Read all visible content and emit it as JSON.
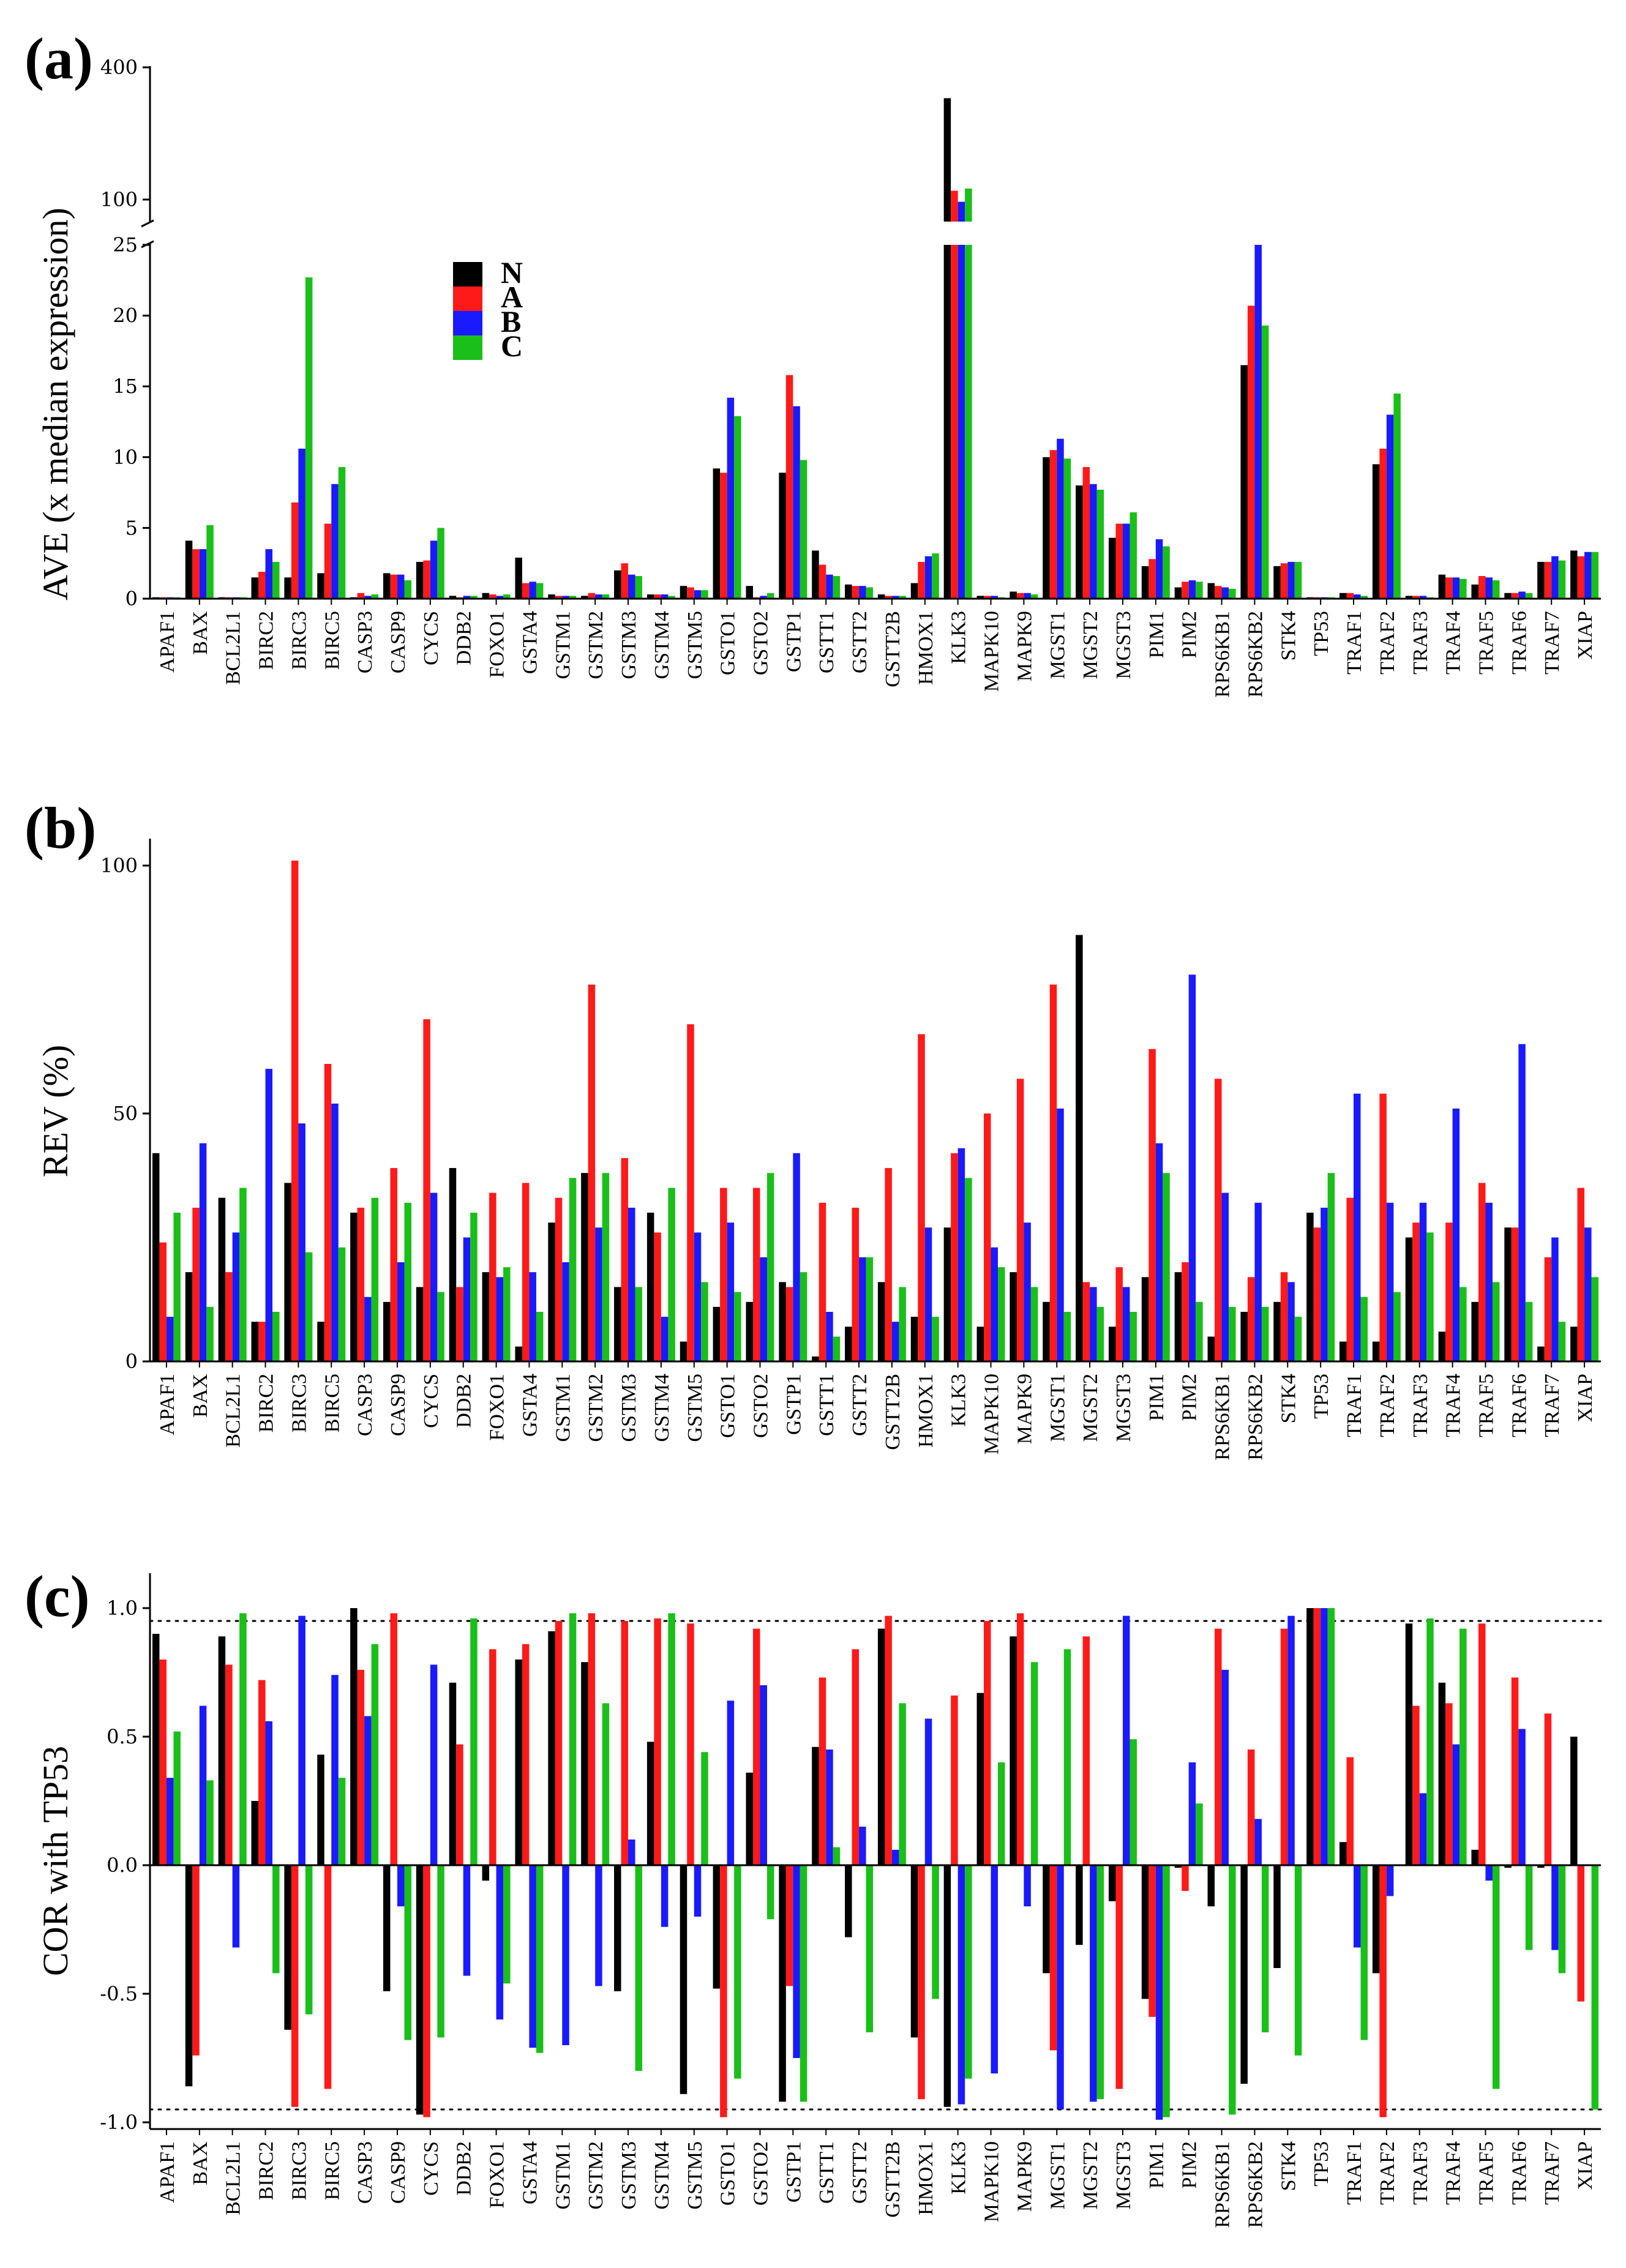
{
  "colors": {
    "N": "#000000",
    "A": "#ff1a1a",
    "B": "#1a1aff",
    "C": "#1abf1a"
  },
  "series_names": [
    "N",
    "A",
    "B",
    "C"
  ],
  "chart_data": [
    {
      "panel": "(a)",
      "type": "bar",
      "ylabel": "AVE (x median expression)",
      "broken_axis": true,
      "ylim_lower": [
        0,
        25
      ],
      "ylim_upper": [
        50,
        400
      ],
      "yticks_lower": [
        "0",
        "5",
        "10",
        "15",
        "20",
        "25"
      ],
      "yticks_upper": [
        "100",
        "400"
      ],
      "legend": [
        "N",
        "A",
        "B",
        "C"
      ],
      "legend_position": "upper-left",
      "categories": [
        "APAF1",
        "BAX",
        "BCL2L1",
        "BIRC2",
        "BIRC3",
        "BIRC5",
        "CASP3",
        "CASP9",
        "CYCS",
        "DDB2",
        "FOXO1",
        "GSTA4",
        "GSTM1",
        "GSTM2",
        "GSTM3",
        "GSTM4",
        "GSTM5",
        "GSTO1",
        "GSTO2",
        "GSTP1",
        "GSTT1",
        "GSTT2",
        "GSTT2B",
        "HMOX1",
        "KLK3",
        "MAPK10",
        "MAPK9",
        "MGST1",
        "MGST2",
        "MGST3",
        "PIM1",
        "PIM2",
        "RPS6KB1",
        "RPS6KB2",
        "STK4",
        "TP53",
        "TRAF1",
        "TRAF2",
        "TRAF3",
        "TRAF4",
        "TRAF5",
        "TRAF6",
        "TRAF7",
        "XIAP"
      ],
      "series": [
        {
          "name": "N",
          "values": [
            0.1,
            4.1,
            0.1,
            1.5,
            1.5,
            1.8,
            0.1,
            1.8,
            2.6,
            0.2,
            0.4,
            2.9,
            0.3,
            0.2,
            2.0,
            0.3,
            0.9,
            9.2,
            0.9,
            8.9,
            3.4,
            1.0,
            0.3,
            1.1,
            330,
            0.2,
            0.5,
            10.0,
            8.0,
            4.3,
            2.3,
            0.8,
            1.1,
            16.5,
            2.3,
            0.1,
            0.4,
            9.5,
            0.2,
            1.7,
            1.0,
            0.4,
            2.6,
            3.4
          ]
        },
        {
          "name": "A",
          "values": [
            0.1,
            3.5,
            0.1,
            1.9,
            6.8,
            5.3,
            0.4,
            1.7,
            2.7,
            0.1,
            0.3,
            1.1,
            0.2,
            0.4,
            2.5,
            0.3,
            0.8,
            8.9,
            0.1,
            15.8,
            2.4,
            0.9,
            0.2,
            2.6,
            120,
            0.2,
            0.4,
            10.5,
            9.3,
            5.3,
            2.8,
            1.2,
            0.9,
            20.7,
            2.5,
            0.1,
            0.4,
            10.6,
            0.2,
            1.5,
            1.6,
            0.4,
            2.6,
            3.0
          ]
        },
        {
          "name": "B",
          "values": [
            0.1,
            3.5,
            0.1,
            3.5,
            10.6,
            8.1,
            0.2,
            1.7,
            4.1,
            0.2,
            0.2,
            1.2,
            0.2,
            0.3,
            1.7,
            0.3,
            0.6,
            14.2,
            0.2,
            13.6,
            1.7,
            0.9,
            0.2,
            3.0,
            95,
            0.2,
            0.4,
            11.3,
            8.1,
            5.3,
            4.2,
            1.3,
            0.8,
            25.0,
            2.6,
            0.1,
            0.3,
            13.0,
            0.2,
            1.5,
            1.5,
            0.5,
            3.0,
            3.3
          ]
        },
        {
          "name": "C",
          "values": [
            0.1,
            5.2,
            0.1,
            2.6,
            22.7,
            9.3,
            0.3,
            1.3,
            5.0,
            0.2,
            0.3,
            1.1,
            0.2,
            0.3,
            1.6,
            0.2,
            0.6,
            12.9,
            0.4,
            9.8,
            1.6,
            0.8,
            0.2,
            3.2,
            125,
            0.1,
            0.3,
            9.9,
            7.7,
            6.1,
            3.7,
            1.2,
            0.7,
            19.3,
            2.6,
            0.1,
            0.2,
            14.5,
            0.1,
            1.4,
            1.3,
            0.4,
            2.7,
            3.3
          ]
        }
      ]
    },
    {
      "panel": "(b)",
      "type": "bar",
      "ylabel": "REV (%)",
      "ylim": [
        0,
        110
      ],
      "yticks": [
        "0",
        "50",
        "100"
      ],
      "categories": [
        "APAF1",
        "BAX",
        "BCL2L1",
        "BIRC2",
        "BIRC3",
        "BIRC5",
        "CASP3",
        "CASP9",
        "CYCS",
        "DDB2",
        "FOXO1",
        "GSTA4",
        "GSTM1",
        "GSTM2",
        "GSTM3",
        "GSTM4",
        "GSTM5",
        "GSTO1",
        "GSTO2",
        "GSTP1",
        "GSTT1",
        "GSTT2",
        "GSTT2B",
        "HMOX1",
        "KLK3",
        "MAPK10",
        "MAPK9",
        "MGST1",
        "MGST2",
        "MGST3",
        "PIM1",
        "PIM2",
        "RPS6KB1",
        "RPS6KB2",
        "STK4",
        "TP53",
        "TRAF1",
        "TRAF2",
        "TRAF3",
        "TRAF4",
        "TRAF5",
        "TRAF6",
        "TRAF7",
        "XIAP"
      ],
      "series": [
        {
          "name": "N",
          "values": [
            42,
            18,
            33,
            8,
            36,
            8,
            30,
            12,
            15,
            39,
            18,
            3,
            28,
            38,
            15,
            30,
            4,
            11,
            12,
            16,
            1,
            7,
            16,
            9,
            27,
            7,
            18,
            12,
            86,
            7,
            17,
            18,
            5,
            10,
            12,
            30,
            4,
            4,
            25,
            6,
            12,
            27,
            3,
            7
          ]
        },
        {
          "name": "A",
          "values": [
            24,
            31,
            18,
            8,
            101,
            60,
            31,
            39,
            69,
            15,
            34,
            36,
            33,
            76,
            41,
            26,
            68,
            35,
            35,
            15,
            32,
            31,
            39,
            66,
            42,
            50,
            57,
            76,
            16,
            19,
            63,
            20,
            57,
            17,
            18,
            27,
            33,
            54,
            28,
            28,
            36,
            27,
            21,
            35
          ]
        },
        {
          "name": "B",
          "values": [
            9,
            44,
            26,
            59,
            48,
            52,
            13,
            20,
            34,
            25,
            17,
            18,
            20,
            27,
            31,
            9,
            26,
            28,
            21,
            42,
            10,
            21,
            8,
            27,
            43,
            23,
            28,
            51,
            15,
            15,
            44,
            78,
            34,
            32,
            16,
            31,
            54,
            32,
            32,
            51,
            32,
            64,
            25,
            27
          ]
        },
        {
          "name": "C",
          "values": [
            30,
            11,
            35,
            10,
            22,
            23,
            33,
            32,
            14,
            30,
            19,
            10,
            37,
            38,
            15,
            35,
            16,
            14,
            38,
            18,
            5,
            21,
            15,
            9,
            37,
            19,
            15,
            10,
            11,
            10,
            38,
            12,
            11,
            11,
            9,
            38,
            13,
            14,
            26,
            15,
            16,
            12,
            8,
            17
          ]
        }
      ]
    },
    {
      "panel": "(c)",
      "type": "bar",
      "ylabel": "COR with TP53",
      "ylim": [
        -1.1,
        1.1
      ],
      "yticks": [
        "-1.0",
        "-0.5",
        "0.0",
        "0.5",
        "1.0"
      ],
      "reference_lines": [
        0.95,
        -0.95
      ],
      "categories": [
        "APAF1",
        "BAX",
        "BCL2L1",
        "BIRC2",
        "BIRC3",
        "BIRC5",
        "CASP3",
        "CASP9",
        "CYCS",
        "DDB2",
        "FOXO1",
        "GSTA4",
        "GSTM1",
        "GSTM2",
        "GSTM3",
        "GSTM4",
        "GSTM5",
        "GSTO1",
        "GSTO2",
        "GSTP1",
        "GSTT1",
        "GSTT2",
        "GSTT2B",
        "HMOX1",
        "KLK3",
        "MAPK10",
        "MAPK9",
        "MGST1",
        "MGST2",
        "MGST3",
        "PIM1",
        "PIM2",
        "RPS6KB1",
        "RPS6KB2",
        "STK4",
        "TP53",
        "TRAF1",
        "TRAF2",
        "TRAF3",
        "TRAF4",
        "TRAF5",
        "TRAF6",
        "TRAF7",
        "XIAP"
      ],
      "series": [
        {
          "name": "N",
          "values": [
            0.9,
            -0.86,
            0.89,
            0.25,
            -0.64,
            0.43,
            1.0,
            -0.49,
            -0.97,
            0.71,
            -0.06,
            0.8,
            0.91,
            0.79,
            -0.49,
            0.48,
            -0.89,
            -0.48,
            0.36,
            -0.92,
            0.46,
            -0.28,
            0.92,
            -0.67,
            -0.94,
            0.67,
            0.89,
            -0.42,
            -0.31,
            -0.14,
            -0.52,
            -0.01,
            -0.16,
            -0.85,
            -0.4,
            1.0,
            0.09,
            -0.42,
            0.94,
            0.71,
            0.06,
            -0.01,
            -0.01,
            0.5
          ]
        },
        {
          "name": "A",
          "values": [
            0.8,
            -0.74,
            0.78,
            0.72,
            -0.94,
            -0.87,
            0.76,
            0.98,
            -0.98,
            0.47,
            0.84,
            0.86,
            0.95,
            0.98,
            0.95,
            0.96,
            0.94,
            -0.98,
            0.92,
            -0.47,
            0.73,
            0.84,
            0.97,
            -0.91,
            0.66,
            0.95,
            0.98,
            -0.72,
            0.89,
            -0.87,
            -0.59,
            -0.1,
            0.92,
            0.45,
            0.92,
            1.0,
            0.42,
            -0.98,
            0.62,
            0.63,
            0.94,
            0.73,
            0.59,
            -0.53
          ]
        },
        {
          "name": "B",
          "values": [
            0.34,
            0.62,
            -0.32,
            0.56,
            0.97,
            0.74,
            0.58,
            -0.16,
            0.78,
            -0.43,
            -0.6,
            -0.71,
            -0.7,
            -0.47,
            0.1,
            -0.24,
            -0.2,
            0.64,
            0.7,
            -0.75,
            0.45,
            0.15,
            0.06,
            0.57,
            -0.93,
            -0.81,
            -0.16,
            -0.95,
            -0.92,
            0.97,
            -0.99,
            0.4,
            0.76,
            0.18,
            0.97,
            1.0,
            -0.32,
            -0.12,
            0.28,
            0.47,
            -0.06,
            0.53,
            -0.33,
            0.0
          ]
        },
        {
          "name": "C",
          "values": [
            0.52,
            0.33,
            0.98,
            -0.42,
            -0.58,
            0.34,
            0.86,
            -0.68,
            -0.67,
            0.96,
            -0.46,
            -0.73,
            0.98,
            0.63,
            -0.8,
            0.98,
            0.44,
            -0.83,
            -0.21,
            -0.92,
            0.07,
            -0.65,
            0.63,
            -0.52,
            -0.83,
            0.4,
            0.79,
            0.84,
            -0.91,
            0.49,
            -0.98,
            0.24,
            -0.97,
            -0.65,
            -0.74,
            1.0,
            -0.68,
            0.0,
            0.96,
            0.92,
            -0.87,
            -0.33,
            -0.42,
            -0.95
          ]
        }
      ]
    }
  ]
}
